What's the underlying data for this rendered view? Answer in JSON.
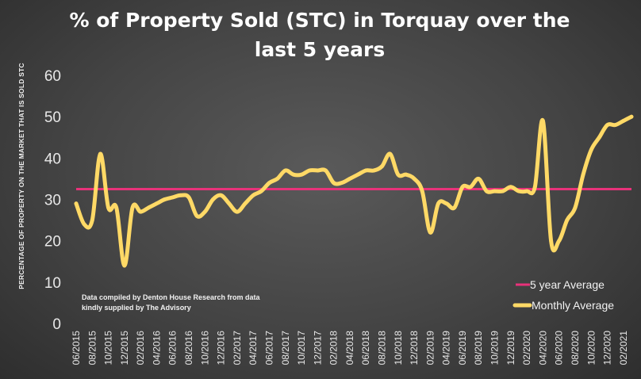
{
  "chart_data": {
    "type": "line",
    "title_lines": [
      "% of Property Sold (STC) in Torquay over the",
      "last 5 years"
    ],
    "ylabel": "PERCENTAGE OF PROPERTY ON THE MARKET THAT IS SOLD STC",
    "ylim": [
      0,
      60
    ],
    "yticks": [
      "0",
      "10",
      "20",
      "30",
      "40",
      "50",
      "60"
    ],
    "xlim": [
      "2015-06",
      "2021-03"
    ],
    "xticks": [
      "06/2015",
      "08/2015",
      "10/2015",
      "12/2015",
      "02/2016",
      "04/2016",
      "06/2016",
      "08/2016",
      "10/2016",
      "12/2016",
      "02/2017",
      "04/2017",
      "06/2017",
      "08/2017",
      "10/2017",
      "12/2017",
      "02/2018",
      "04/2018",
      "06/2018",
      "08/2018",
      "10/2018",
      "12/2018",
      "02/2019",
      "04/2019",
      "06/2019",
      "08/2019",
      "10/2019",
      "12/2019",
      "02/2020",
      "04/2020",
      "06/2020",
      "08/2020",
      "10/2020",
      "12/2020",
      "02/2021"
    ],
    "grid": false,
    "legend_position": "bottom-right",
    "annotation": [
      "Data compiled by Denton House Research from data",
      "kindly supplied by The Advisory"
    ],
    "series": [
      {
        "name": "5 year Average",
        "color": "#e8327a",
        "x": [
          "2015-06",
          "2021-03"
        ],
        "values": [
          32.5,
          32.5
        ]
      },
      {
        "name": "Monthly Average",
        "color": "#ffd966",
        "x": [
          "2015-06",
          "2015-07",
          "2015-08",
          "2015-09",
          "2015-10",
          "2015-11",
          "2015-12",
          "2016-01",
          "2016-02",
          "2016-03",
          "2016-04",
          "2016-05",
          "2016-06",
          "2016-07",
          "2016-08",
          "2016-09",
          "2016-10",
          "2016-11",
          "2016-12",
          "2017-01",
          "2017-02",
          "2017-03",
          "2017-04",
          "2017-05",
          "2017-06",
          "2017-07",
          "2017-08",
          "2017-09",
          "2017-10",
          "2017-11",
          "2017-12",
          "2018-01",
          "2018-02",
          "2018-03",
          "2018-04",
          "2018-05",
          "2018-06",
          "2018-07",
          "2018-08",
          "2018-09",
          "2018-10",
          "2018-11",
          "2018-12",
          "2019-01",
          "2019-02",
          "2019-03",
          "2019-04",
          "2019-05",
          "2019-06",
          "2019-07",
          "2019-08",
          "2019-09",
          "2019-10",
          "2019-11",
          "2019-12",
          "2020-01",
          "2020-02",
          "2020-03",
          "2020-04",
          "2020-05",
          "2020-06",
          "2020-07",
          "2020-08",
          "2020-09",
          "2020-10",
          "2020-11",
          "2020-12",
          "2021-01",
          "2021-02",
          "2021-03"
        ],
        "values": [
          29,
          24,
          25,
          41,
          28,
          28,
          14,
          28,
          27,
          28,
          29,
          30,
          30.5,
          31,
          30.5,
          26,
          27,
          30,
          31,
          29,
          27,
          29,
          31,
          32,
          34,
          35,
          37,
          36,
          36,
          37,
          37,
          37,
          34,
          34,
          35,
          36,
          37,
          37,
          38,
          41,
          36,
          36,
          35,
          32,
          22,
          29,
          29,
          28,
          33,
          33,
          35,
          32,
          32,
          32,
          33,
          32,
          32,
          33,
          49,
          20,
          20,
          25,
          28,
          36,
          42,
          45,
          48,
          48,
          49,
          50
        ]
      }
    ]
  }
}
